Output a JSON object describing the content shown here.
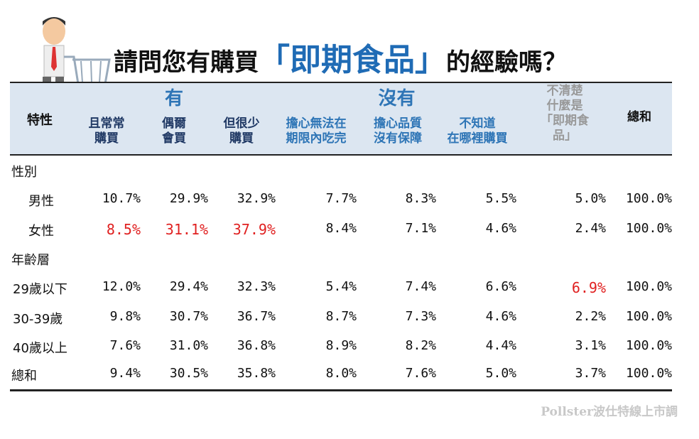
{
  "title": {
    "before": "請問您有購買",
    "highlight": "「即期食品」",
    "after": "的經驗嗎？"
  },
  "header": {
    "label": "特性",
    "groups": [
      {
        "text": "有",
        "span": [
          1,
          3
        ]
      },
      {
        "text": "沒有",
        "span": [
          4,
          6
        ]
      }
    ],
    "columns": [
      "且常常\n購買",
      "偶爾\n會買",
      "但很少\n購買",
      "擔心無法在\n期限內吃完",
      "擔心品質\n沒有保障",
      "不知道\n在哪裡購買",
      "不清楚\n什麼是\n「即期食\n品」",
      "總和"
    ]
  },
  "sections": [
    {
      "label": "性別",
      "rows": [
        {
          "label": "男性",
          "values": [
            "10.7%",
            "29.9%",
            "32.9%",
            "7.7%",
            "8.3%",
            "5.5%",
            "5.0%",
            "100.0%"
          ],
          "highlight": []
        },
        {
          "label": "女性",
          "values": [
            "8.5%",
            "31.1%",
            "37.9%",
            "8.4%",
            "7.1%",
            "4.6%",
            "2.4%",
            "100.0%"
          ],
          "highlight": [
            1,
            2,
            3
          ]
        }
      ]
    },
    {
      "label": "年齡層",
      "rows": [
        {
          "label": "29歲以下",
          "values": [
            "12.0%",
            "29.4%",
            "32.3%",
            "5.4%",
            "7.4%",
            "6.6%",
            "6.9%",
            "100.0%"
          ],
          "highlight": [
            7
          ]
        },
        {
          "label": "30-39歲",
          "values": [
            "9.8%",
            "30.7%",
            "36.7%",
            "8.7%",
            "7.3%",
            "4.6%",
            "2.2%",
            "100.0%"
          ],
          "highlight": []
        },
        {
          "label": "40歲以上",
          "values": [
            "7.6%",
            "31.0%",
            "36.8%",
            "8.9%",
            "8.2%",
            "4.4%",
            "3.1%",
            "100.0%"
          ],
          "highlight": []
        }
      ]
    }
  ],
  "total": {
    "label": "總和",
    "values": [
      "9.4%",
      "30.5%",
      "35.8%",
      "8.0%",
      "7.6%",
      "5.0%",
      "3.7%",
      "100.0%"
    ]
  },
  "watermark": "Pollster波仕特線上市調"
}
